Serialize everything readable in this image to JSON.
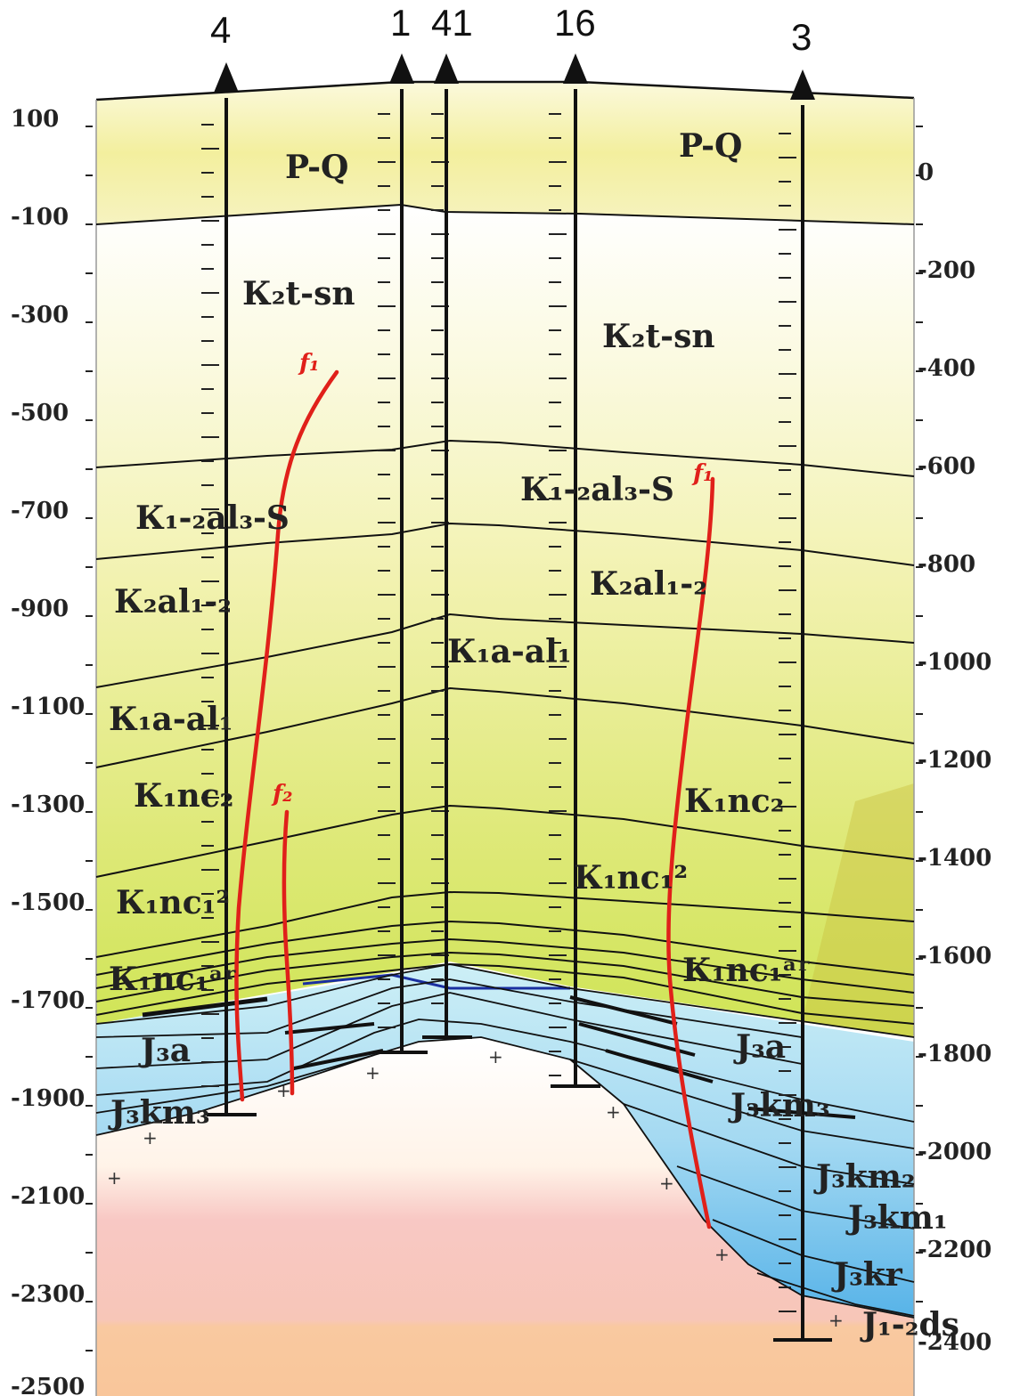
{
  "colors": {
    "pq_band": "#f4f0b4",
    "upper_cretaceous": "#ffffff",
    "cretaceous_fade": "#f7f5c8",
    "cretaceous_green": "#d4e665",
    "cretaceous_deep": "#c9c040",
    "jurassic_light": "#c4ecf4",
    "jurassic_mid": "#9ed6f2",
    "jurassic_deep": "#5ab6ea",
    "basement_pink": "#f8c8c4",
    "basement_orange": "#f9c9a0",
    "fault_red": "#e0201a",
    "line_black": "#111111"
  },
  "left_axis": {
    "ticks": [
      "100",
      "-100",
      "-300",
      "-500",
      "-700",
      "-900",
      "-1100",
      "-1300",
      "-1500",
      "-1700",
      "-1900",
      "-2100",
      "-2300",
      "-2500"
    ]
  },
  "right_axis": {
    "ticks": [
      "0",
      "-200",
      "-400",
      "-600",
      "-800",
      "-1000",
      "-1200",
      "-1400",
      "-1600",
      "-1800",
      "-2000",
      "-2200",
      "-2400"
    ]
  },
  "wells": [
    {
      "name": "4"
    },
    {
      "name": "1"
    },
    {
      "name": "41"
    },
    {
      "name": "16"
    },
    {
      "name": "3"
    }
  ],
  "strata_labels": [
    {
      "text": "P-Q"
    },
    {
      "text": "P-Q"
    },
    {
      "text": "К₂t-sn"
    },
    {
      "text": "К₂t-sn"
    },
    {
      "text": "К₁-₂al₃-S"
    },
    {
      "text": "К₁-₂al₃-S"
    },
    {
      "text": "К₂al₁-₂"
    },
    {
      "text": "К₂al₁-₂"
    },
    {
      "text": "К₁a-al₁"
    },
    {
      "text": "К₁a-al₁"
    },
    {
      "text": "К₁nc₂"
    },
    {
      "text": "К₁nc₂"
    },
    {
      "text": "К₁nc₁²"
    },
    {
      "text": "К₁nc₁²"
    },
    {
      "text": "К₁nc₁ᵃʳ"
    },
    {
      "text": "К₁nc₁ᵃʳ"
    },
    {
      "text": "J₃a"
    },
    {
      "text": "J₃a"
    },
    {
      "text": "J₃km₃"
    },
    {
      "text": "J₃km₃"
    },
    {
      "text": "J₃km₂"
    },
    {
      "text": "J₃km₁"
    },
    {
      "text": "J₃kr"
    },
    {
      "text": "J₁-₂ds"
    }
  ],
  "faults": [
    {
      "label": "f₁"
    },
    {
      "label": "f₂"
    },
    {
      "label": "f₁"
    }
  ]
}
